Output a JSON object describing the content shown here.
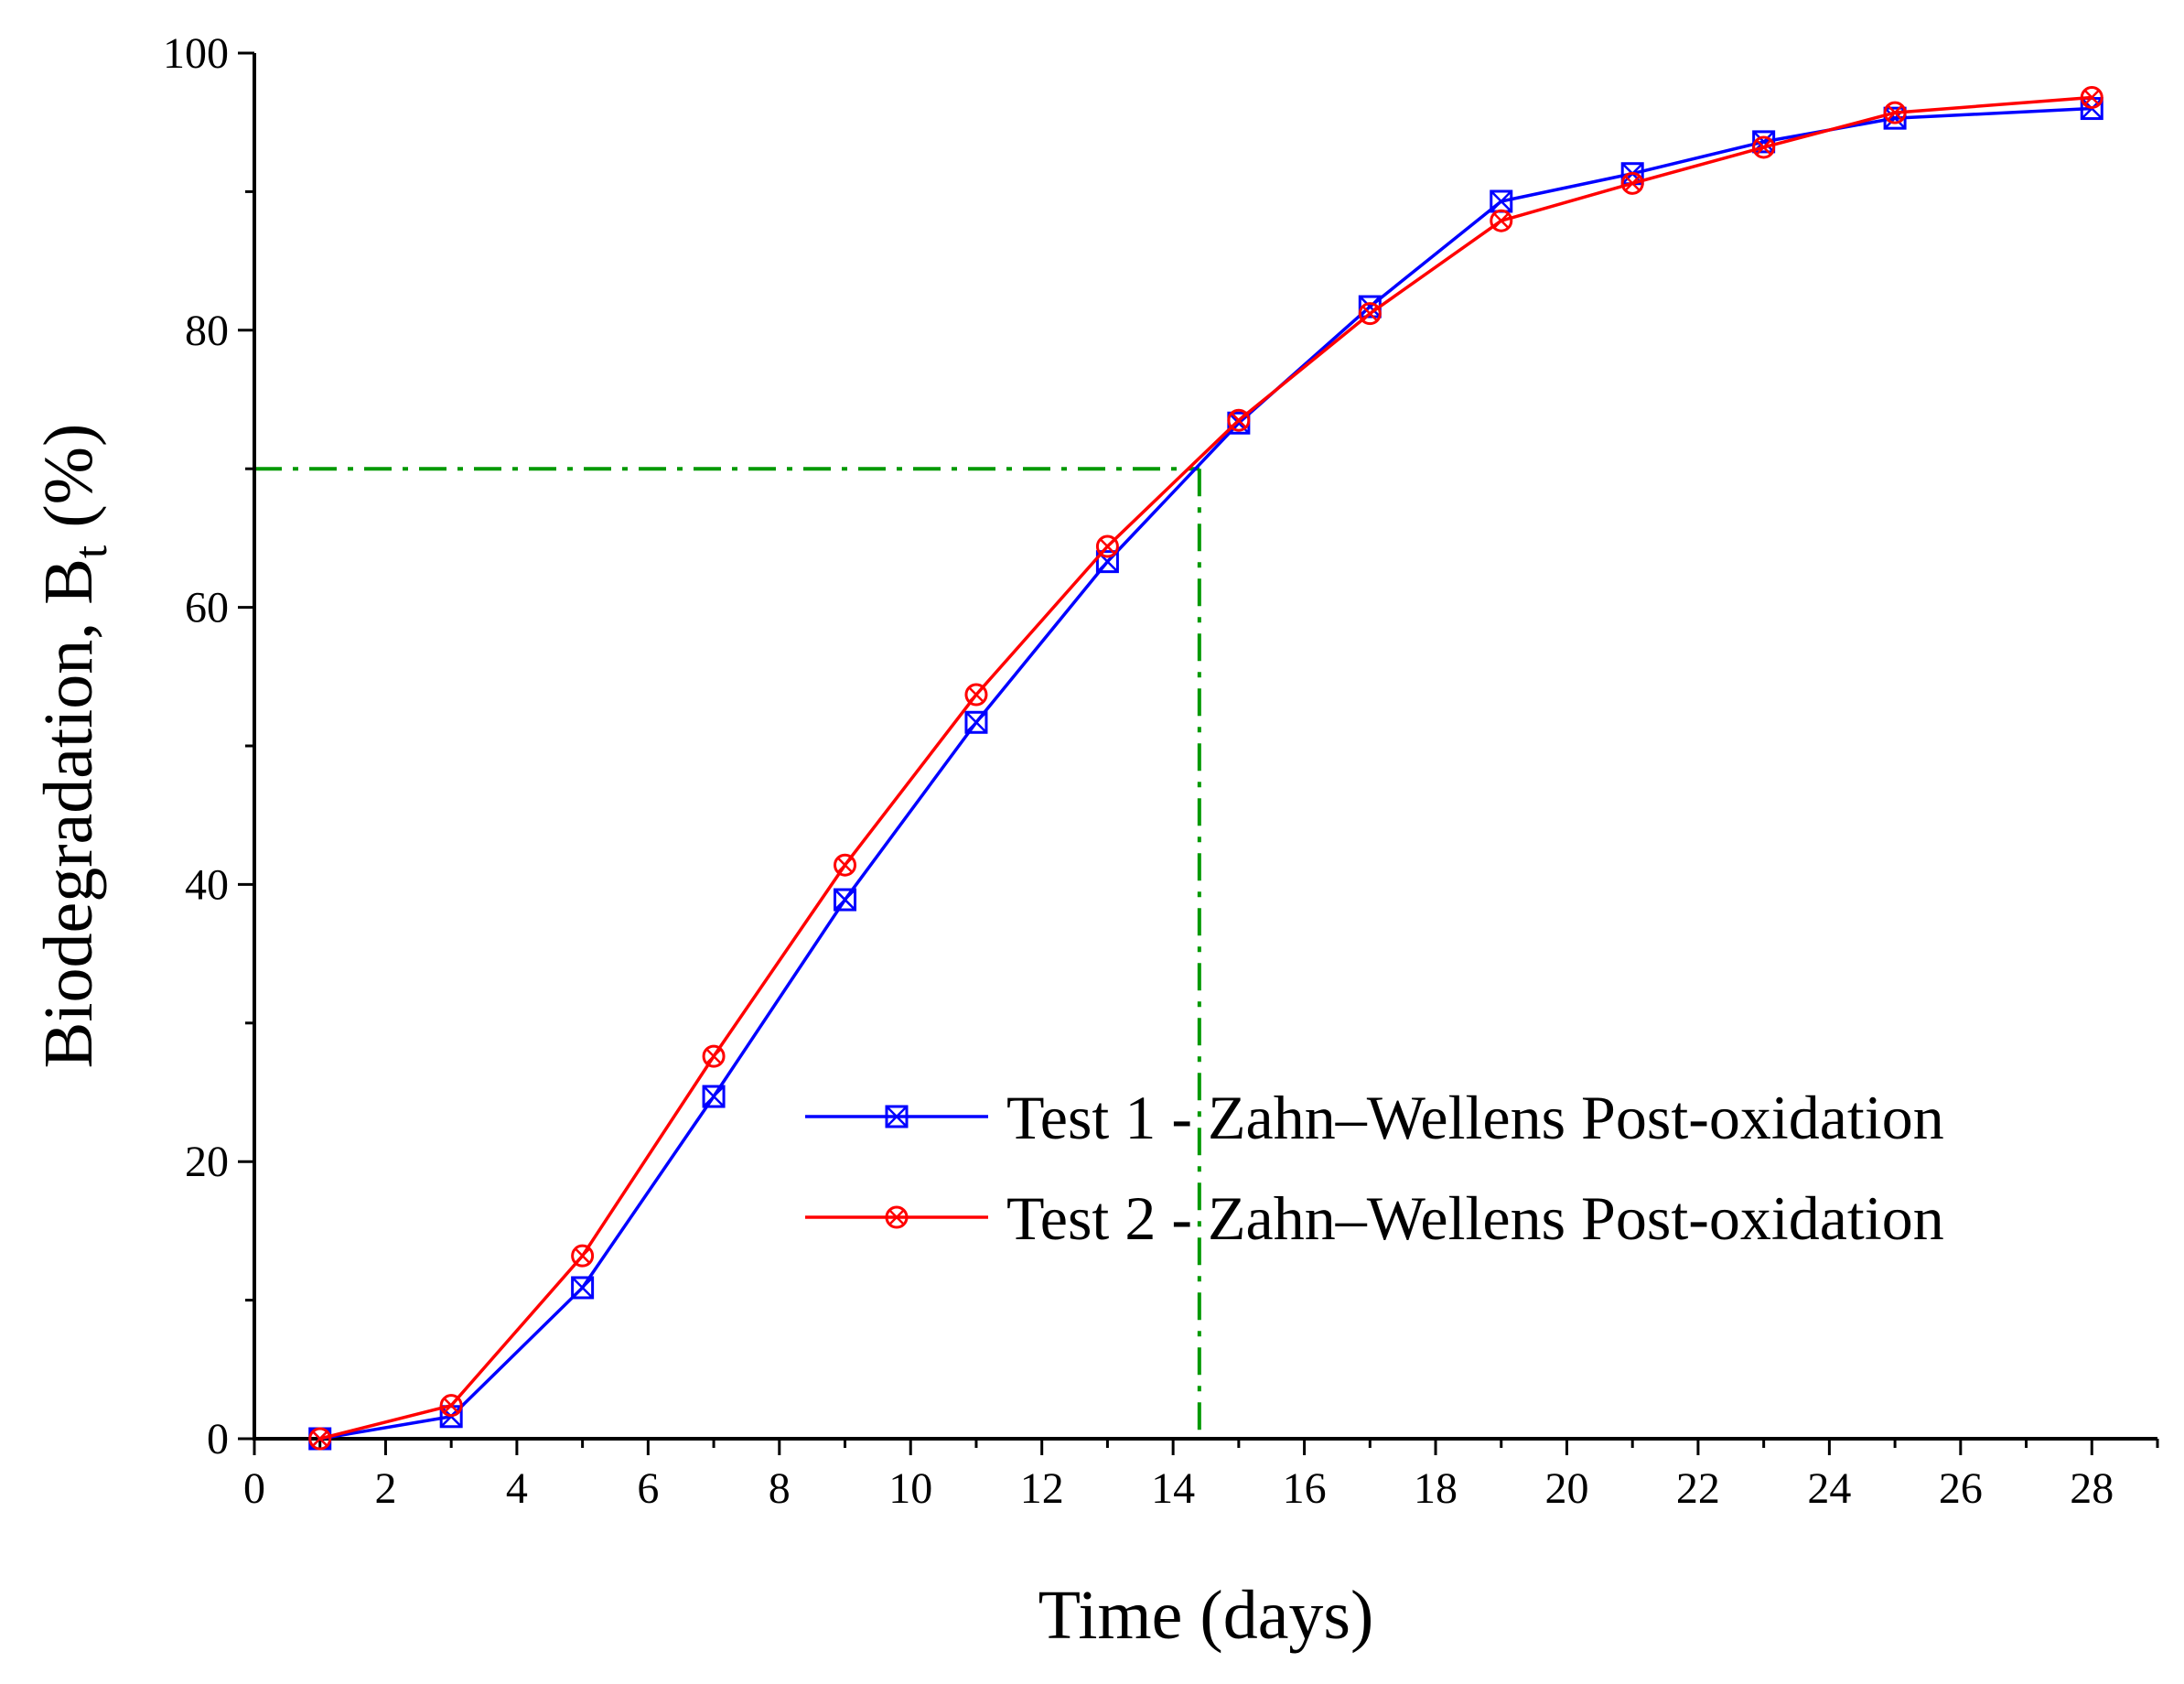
{
  "chart_data": {
    "type": "line",
    "title": "",
    "xlabel": "Time (days)",
    "ylabel_main": "Biodegradation, B",
    "ylabel_sub": "t",
    "ylabel_suffix": " (%)",
    "xlim": [
      0,
      29
    ],
    "ylim": [
      0,
      100
    ],
    "xticks": [
      0,
      2,
      4,
      6,
      8,
      10,
      12,
      14,
      16,
      18,
      20,
      22,
      24,
      26,
      28
    ],
    "yticks": [
      0,
      20,
      40,
      60,
      80,
      100
    ],
    "x": [
      1,
      3,
      5,
      7,
      9,
      11,
      13,
      15,
      17,
      19,
      21,
      23,
      25,
      28
    ],
    "series": [
      {
        "name": "Test 1 - Zahn–Wellens Post-oxidation",
        "color": "#0000ff",
        "marker": "square-x",
        "values": [
          0,
          1.6,
          10.9,
          24.7,
          38.9,
          51.7,
          63.3,
          73.3,
          81.7,
          89.3,
          91.3,
          93.6,
          95.3,
          96.0
        ]
      },
      {
        "name": "Test 2 - Zahn–Wellens Post-oxidation",
        "color": "#ff0000",
        "marker": "circle-x",
        "values": [
          0,
          2.4,
          13.2,
          27.6,
          41.4,
          53.7,
          64.4,
          73.5,
          81.2,
          87.9,
          90.6,
          93.2,
          95.7,
          96.8
        ]
      }
    ],
    "reference_lines": {
      "color": "#009900",
      "style": "dash-dot",
      "y": 70,
      "x": 14.4
    },
    "legend_position": "lower-right",
    "grid": false
  }
}
